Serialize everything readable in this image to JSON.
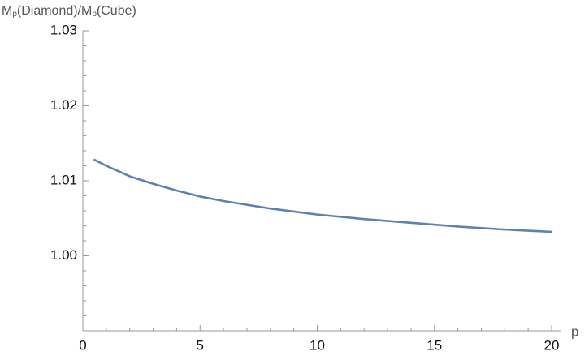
{
  "chart_data": {
    "type": "line",
    "y_label": [
      "M",
      "p",
      "(Diamond)/M",
      "p",
      "(Cube)"
    ],
    "x_label": "p",
    "x": [
      0.5,
      1,
      1.5,
      2,
      3,
      4,
      5,
      6,
      7,
      8,
      10,
      12,
      14,
      16,
      18,
      20
    ],
    "series": [
      {
        "color": "#5e81b5",
        "values": [
          1.0128,
          1.012,
          1.0113,
          1.0106,
          1.0096,
          1.0087,
          1.0079,
          1.0073,
          1.0068,
          1.0063,
          1.0055,
          1.0049,
          1.0044,
          1.0039,
          1.0035,
          1.0032
        ]
      }
    ],
    "xlim": [
      0,
      20.4
    ],
    "ylim": [
      0.99,
      1.03
    ],
    "xticks": [
      0,
      5,
      10,
      15,
      20
    ],
    "yticks": [
      {
        "value": 1,
        "label": "1.00"
      },
      1.01,
      1.02,
      1.03
    ],
    "xminorticks": [
      1,
      2,
      3,
      4,
      6,
      7,
      8,
      9,
      11,
      12,
      13,
      14,
      16,
      17,
      18,
      19
    ],
    "yminorticks": [
      0.992,
      0.994,
      0.996,
      0.998,
      1.002,
      1.004,
      1.006,
      1.008,
      1.012,
      1.014,
      1.016,
      1.018,
      1.022,
      1.024,
      1.026,
      1.028
    ]
  }
}
